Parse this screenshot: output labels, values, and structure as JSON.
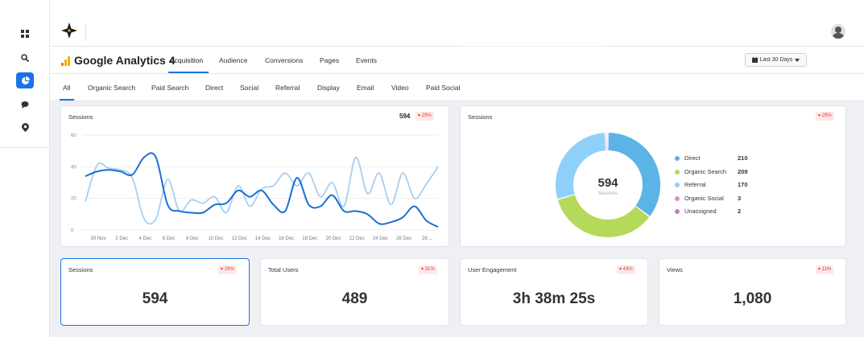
{
  "header": {
    "app_title": "Google Analytics 4",
    "tabs": [
      "Acquisition",
      "Audience",
      "Conversions",
      "Pages",
      "Events"
    ],
    "active_tab": "Acquisition",
    "date_range": "Last 30 Days"
  },
  "sidebar": {
    "icons": [
      "grid-icon",
      "search-icon",
      "pie-chart-icon",
      "chat-icon",
      "location-icon"
    ],
    "active": "pie-chart-icon"
  },
  "channels": {
    "tabs": [
      "All",
      "Organic Search",
      "Paid Search",
      "Direct",
      "Social",
      "Referral",
      "Display",
      "Email",
      "Video",
      "Paid Social"
    ],
    "active": "All"
  },
  "line_card": {
    "title": "Sessions",
    "total": "594",
    "change": "▾ 29%"
  },
  "donut_card": {
    "title": "Sessions",
    "center_value": "594",
    "center_label": "Sessions",
    "change": "▾ 29%"
  },
  "kpis": [
    {
      "title": "Sessions",
      "value": "594",
      "change": "▾ 29%"
    },
    {
      "title": "Total Users",
      "value": "489",
      "change": "▾ 31%"
    },
    {
      "title": "User Engagement",
      "value": "3h 38m 25s",
      "change": "▾ 43%"
    },
    {
      "title": "Views",
      "value": "1,080",
      "change": "▾ 11%"
    }
  ],
  "colors": {
    "accent": "#1a73e8",
    "negative": "#e53935",
    "negative_bg": "#fde8e8",
    "line_current": "#1a6fd6",
    "line_previous": "#a8cff0"
  },
  "chart_data": [
    {
      "type": "line",
      "title": "",
      "ylim": [
        0,
        60
      ],
      "yticks": [
        0,
        20,
        40,
        60
      ],
      "x_tick_labels": [
        "30 Nov",
        "2 Dec",
        "4 Dec",
        "6 Dec",
        "8 Dec",
        "10 Dec",
        "12 Dec",
        "14 Dec",
        "16 Dec",
        "18 Dec",
        "20 Dec",
        "22 Dec",
        "24 Dec",
        "26 Dec",
        "28 ..."
      ],
      "x": [
        "29 Nov",
        "30 Nov",
        "1 Dec",
        "2 Dec",
        "3 Dec",
        "4 Dec",
        "5 Dec",
        "6 Dec",
        "7 Dec",
        "8 Dec",
        "9 Dec",
        "10 Dec",
        "11 Dec",
        "12 Dec",
        "13 Dec",
        "14 Dec",
        "15 Dec",
        "16 Dec",
        "17 Dec",
        "18 Dec",
        "19 Dec",
        "20 Dec",
        "21 Dec",
        "22 Dec",
        "23 Dec",
        "24 Dec",
        "25 Dec",
        "26 Dec",
        "27 Dec",
        "28 Dec",
        "29 Dec"
      ],
      "series": [
        {
          "values": [
            34,
            37,
            38,
            37,
            35,
            46,
            46,
            16,
            12,
            11,
            11,
            16,
            17,
            25,
            21,
            25,
            16,
            12,
            33,
            16,
            15,
            22,
            12,
            12,
            10,
            4,
            5,
            8,
            15,
            6,
            2
          ]
        },
        {
          "values": [
            18,
            41,
            39,
            38,
            33,
            7,
            7,
            32,
            12,
            19,
            17,
            21,
            11,
            28,
            15,
            26,
            28,
            36,
            28,
            36,
            21,
            30,
            15,
            46,
            23,
            36,
            16,
            36,
            20,
            29,
            40
          ]
        }
      ]
    },
    {
      "type": "pie",
      "title": "",
      "categories": [
        "Direct",
        "Organic Search",
        "Referral",
        "Organic Social",
        "Unassigned"
      ],
      "values": [
        210,
        209,
        170,
        3,
        2
      ],
      "colors": [
        "#5cb3e6",
        "#b5d95a",
        "#8fd0fb",
        "#d591cc",
        "#c77fbc"
      ],
      "legend_position": "right"
    }
  ]
}
